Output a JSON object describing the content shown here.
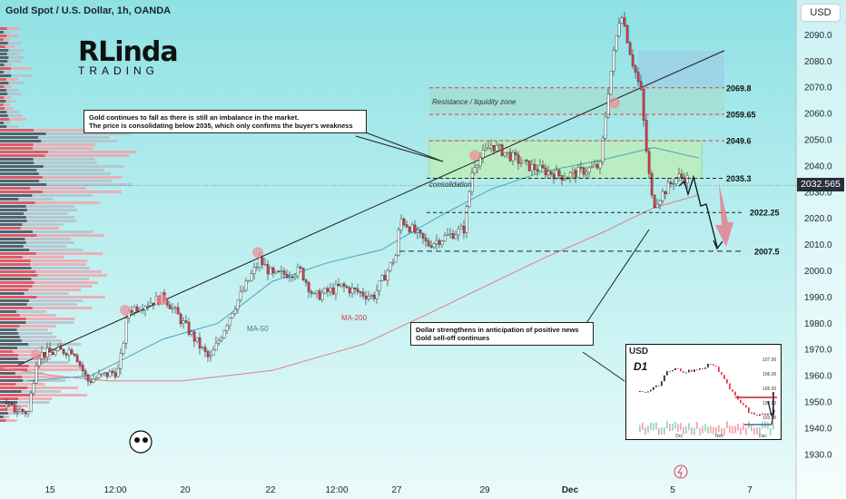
{
  "header": {
    "title": "Gold Spot / U.S. Dollar, 1h, OANDA",
    "currency": "USD"
  },
  "logo": {
    "line1": "RLinda",
    "line2": "TRADING"
  },
  "colors": {
    "up": "#ffffff",
    "down": "#e6394a",
    "ma50": "#4aa3b8",
    "ma200": "#e57b86",
    "resistance": "#4a4a4a"
  },
  "price_tag": "2032.565",
  "annotations": {
    "note_top": "Gold continues to fall as there is still an imbalance in the market.\nThe price is consolidating below 2035, which only confirms the buyer's weakness",
    "note_bottom": "Dollar strengthens in anticipation of positive news\nGold sell-off continues",
    "resistance_zone": "Resistance / liquidity zone",
    "consolidation": "consolidation",
    "ma50": "MA-50",
    "ma200": "MA-200"
  },
  "inset": {
    "title": "USD",
    "label": "D1",
    "y_ticks": [
      "107.00",
      "106.00",
      "105.00",
      "104.00",
      "103.00"
    ],
    "x_ticks": [
      "Oct",
      "Nov",
      "Dec"
    ]
  },
  "chart_data": {
    "type": "line",
    "ylim": [
      1922,
      2100
    ],
    "y_ticks": [
      2090,
      2080,
      2070,
      2060,
      2050,
      2040,
      2030,
      2020,
      2010,
      2000,
      1990,
      1980,
      1970,
      1960,
      1950,
      1940,
      1930
    ],
    "x_ticks": [
      "15",
      "12:00",
      "20",
      "22",
      "12:00",
      "27",
      "29",
      "Dec",
      "5",
      "7"
    ],
    "levels": [
      {
        "label": "2069.8",
        "value": 2069.8
      },
      {
        "label": "2059.65",
        "value": 2059.65
      },
      {
        "label": "2049.6",
        "value": 2049.6
      },
      {
        "label": "2035.3",
        "value": 2035.3
      },
      {
        "label": "2022.25",
        "value": 2022.25
      },
      {
        "label": "2007.5",
        "value": 2007.5
      }
    ],
    "current_price": 2032.565
  }
}
